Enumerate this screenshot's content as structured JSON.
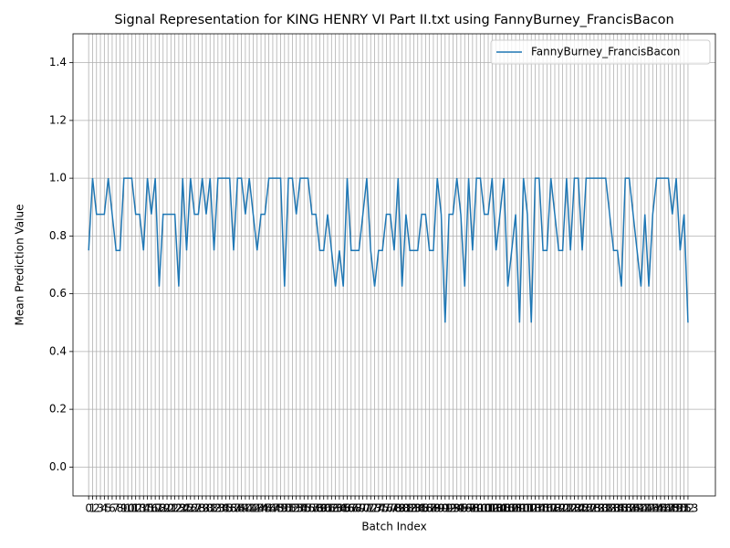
{
  "chart_data": {
    "type": "line",
    "title": "Signal Representation for KING HENRY VI Part II.txt using FannyBurney_FrancisBacon",
    "x_label": "Batch Index",
    "y_label": "Mean Prediction Value",
    "x": [
      0,
      1,
      2,
      3,
      4,
      5,
      6,
      7,
      8,
      9,
      10,
      11,
      12,
      13,
      14,
      15,
      16,
      17,
      18,
      19,
      20,
      21,
      22,
      23,
      24,
      25,
      26,
      27,
      28,
      29,
      30,
      31,
      32,
      33,
      34,
      35,
      36,
      37,
      38,
      39,
      40,
      41,
      42,
      43,
      44,
      45,
      46,
      47,
      48,
      49,
      50,
      51,
      52,
      53,
      54,
      55,
      56,
      57,
      58,
      59,
      60,
      61,
      62,
      63,
      64,
      65,
      66,
      67,
      68,
      69,
      70,
      71,
      72,
      73,
      74,
      75,
      76,
      77,
      78,
      79,
      80,
      81,
      82,
      83,
      84,
      85,
      86,
      87,
      88,
      89,
      90,
      91,
      92,
      93,
      94,
      95,
      96,
      97,
      98,
      99,
      100,
      101,
      102,
      103,
      104,
      105,
      106,
      107,
      108,
      109,
      110,
      111,
      112,
      113,
      114,
      115,
      116,
      117,
      118,
      119,
      120,
      121,
      122,
      123,
      124,
      125,
      126,
      127,
      128,
      129,
      130,
      131,
      132,
      133,
      134,
      135,
      136,
      137,
      138,
      139,
      140,
      141,
      142,
      143,
      144,
      145,
      146,
      147,
      148,
      149,
      150,
      151,
      152,
      153
    ],
    "series": [
      {
        "name": "FannyBurney_FrancisBacon",
        "color": "#1f77b4",
        "values": [
          0.75,
          1.0,
          0.875,
          0.875,
          0.875,
          1.0,
          0.875,
          0.75,
          0.75,
          1.0,
          1.0,
          1.0,
          0.875,
          0.875,
          0.75,
          1.0,
          0.875,
          1.0,
          0.625,
          0.875,
          0.875,
          0.875,
          0.875,
          0.625,
          1.0,
          0.75,
          1.0,
          0.875,
          0.875,
          1.0,
          0.875,
          1.0,
          0.75,
          1.0,
          1.0,
          1.0,
          1.0,
          0.75,
          1.0,
          1.0,
          0.875,
          1.0,
          0.875,
          0.75,
          0.875,
          0.875,
          1.0,
          1.0,
          1.0,
          1.0,
          0.625,
          1.0,
          1.0,
          0.875,
          1.0,
          1.0,
          1.0,
          0.875,
          0.875,
          0.75,
          0.75,
          0.875,
          0.75,
          0.625,
          0.75,
          0.625,
          1.0,
          0.75,
          0.75,
          0.75,
          0.875,
          1.0,
          0.75,
          0.625,
          0.75,
          0.75,
          0.875,
          0.875,
          0.75,
          1.0,
          0.625,
          0.875,
          0.75,
          0.75,
          0.75,
          0.875,
          0.875,
          0.75,
          0.75,
          1.0,
          0.875,
          0.5,
          0.875,
          0.875,
          1.0,
          0.875,
          0.625,
          1.0,
          0.75,
          1.0,
          1.0,
          0.875,
          0.875,
          1.0,
          0.75,
          0.875,
          1.0,
          0.625,
          0.75,
          0.875,
          0.5,
          1.0,
          0.875,
          0.5,
          1.0,
          1.0,
          0.75,
          0.75,
          1.0,
          0.875,
          0.75,
          0.75,
          1.0,
          0.75,
          1.0,
          1.0,
          0.75,
          1.0,
          1.0,
          1.0,
          1.0,
          1.0,
          1.0,
          0.875,
          0.75,
          0.75,
          0.625,
          1.0,
          1.0,
          0.875,
          0.75,
          0.625,
          0.875,
          0.625,
          0.875,
          1.0,
          1.0,
          1.0,
          1.0,
          0.875,
          1.0,
          0.75,
          0.875,
          0.5
        ]
      }
    ],
    "xlim": [
      -4,
      160
    ],
    "ylim": [
      -0.1,
      1.5
    ],
    "xticks": [
      0,
      1,
      2,
      3,
      4,
      5,
      6,
      7,
      8,
      9,
      10,
      11,
      12,
      13,
      14,
      15,
      16,
      17,
      18,
      19,
      20,
      21,
      22,
      23,
      24,
      25,
      26,
      27,
      28,
      29,
      30,
      31,
      32,
      33,
      34,
      35,
      36,
      37,
      38,
      39,
      40,
      41,
      42,
      43,
      44,
      45,
      46,
      47,
      48,
      49,
      50,
      51,
      52,
      53,
      54,
      55,
      56,
      57,
      58,
      59,
      60,
      61,
      62,
      63,
      64,
      65,
      66,
      67,
      68,
      69,
      70,
      71,
      72,
      73,
      74,
      75,
      76,
      77,
      78,
      79,
      80,
      81,
      82,
      83,
      84,
      85,
      86,
      87,
      88,
      89,
      90,
      91,
      92,
      93,
      94,
      95,
      96,
      97,
      98,
      99,
      100,
      101,
      102,
      103,
      104,
      105,
      106,
      107,
      108,
      109,
      110,
      111,
      112,
      113,
      114,
      115,
      116,
      117,
      118,
      119,
      120,
      121,
      122,
      123,
      124,
      125,
      126,
      127,
      128,
      129,
      130,
      131,
      132,
      133,
      134,
      135,
      136,
      137,
      138,
      139,
      140,
      141,
      142,
      143,
      144,
      145,
      146,
      147,
      148,
      149,
      150,
      151,
      152,
      153
    ],
    "yticks": [
      {
        "value": 0,
        "label": "0.0"
      },
      0.2,
      0.4,
      0.6,
      0.8,
      {
        "value": 1,
        "label": "1.0"
      },
      1.2,
      1.4
    ],
    "grid": true,
    "legend": "upper right"
  }
}
